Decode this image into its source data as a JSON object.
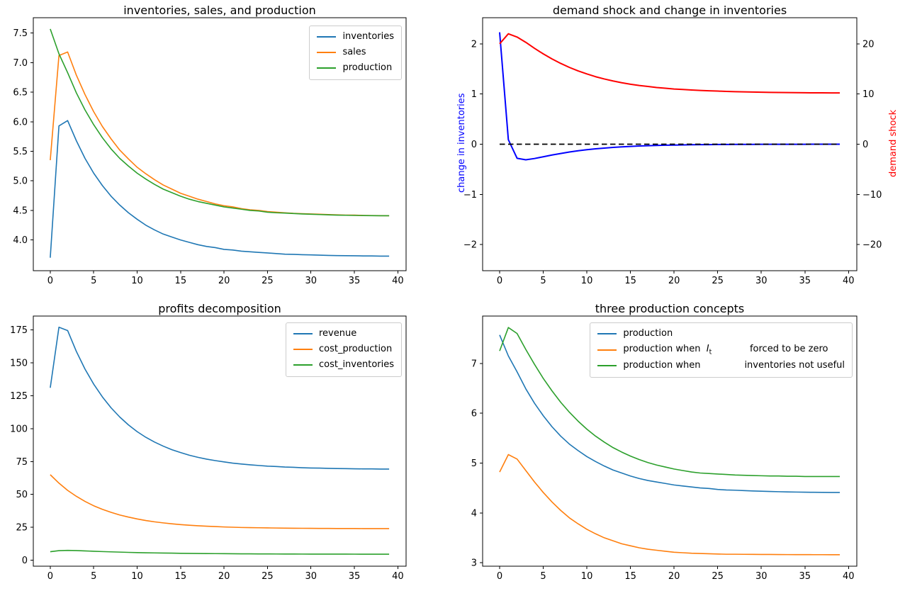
{
  "figure": {
    "background": "#ffffff"
  },
  "colors": {
    "mpl_blue": "#1f77b4",
    "mpl_orange": "#ff7f0e",
    "mpl_green": "#2ca02c",
    "pure_blue": "#0000ff",
    "pure_red": "#ff0000",
    "black": "#000000"
  },
  "x_values": [
    0,
    1,
    2,
    3,
    4,
    5,
    6,
    7,
    8,
    9,
    10,
    11,
    12,
    13,
    14,
    15,
    16,
    17,
    18,
    19,
    20,
    21,
    22,
    23,
    24,
    25,
    26,
    27,
    28,
    29,
    30,
    31,
    32,
    33,
    34,
    35,
    36,
    37,
    38,
    39
  ],
  "chart_data": [
    {
      "id": "inventories-sales-production",
      "type": "line",
      "title": "inventories, sales, and production",
      "xlim": [
        -1.95,
        40.95
      ],
      "ylim": [
        3.48,
        7.76
      ],
      "xticks": [
        0,
        5,
        10,
        15,
        20,
        25,
        30,
        35,
        40
      ],
      "xtick_labels": [
        "0",
        "5",
        "10",
        "15",
        "20",
        "25",
        "30",
        "35",
        "40"
      ],
      "yticks": [
        4.0,
        4.5,
        5.0,
        5.5,
        6.0,
        6.5,
        7.0,
        7.5
      ],
      "ytick_labels": [
        "4.0",
        "4.5",
        "5.0",
        "5.5",
        "6.0",
        "6.5",
        "7.0",
        "7.5"
      ],
      "legend_position": "upper-right",
      "series": [
        {
          "name": "inventories",
          "label": "inventories",
          "color": "#1f77b4",
          "width": 1.6,
          "values": [
            3.7,
            5.93,
            6.02,
            5.68,
            5.38,
            5.13,
            4.92,
            4.74,
            4.59,
            4.46,
            4.35,
            4.25,
            4.17,
            4.1,
            4.05,
            4.0,
            3.96,
            3.92,
            3.89,
            3.87,
            3.84,
            3.83,
            3.81,
            3.8,
            3.79,
            3.78,
            3.77,
            3.76,
            3.757,
            3.751,
            3.747,
            3.743,
            3.739,
            3.736,
            3.734,
            3.732,
            3.73,
            3.729,
            3.727,
            3.726
          ]
        },
        {
          "name": "sales",
          "label": "sales",
          "color": "#ff7f0e",
          "width": 1.6,
          "values": [
            5.35,
            7.12,
            7.18,
            6.79,
            6.46,
            6.17,
            5.92,
            5.71,
            5.52,
            5.37,
            5.23,
            5.12,
            5.02,
            4.93,
            4.86,
            4.79,
            4.74,
            4.69,
            4.65,
            4.61,
            4.58,
            4.56,
            4.53,
            4.51,
            4.5,
            4.48,
            4.47,
            4.46,
            4.45,
            4.445,
            4.44,
            4.435,
            4.43,
            4.425,
            4.42,
            4.42,
            4.415,
            4.413,
            4.411,
            4.41
          ]
        },
        {
          "name": "production",
          "label": "production",
          "color": "#2ca02c",
          "width": 1.6,
          "values": [
            7.57,
            7.15,
            6.83,
            6.49,
            6.2,
            5.95,
            5.73,
            5.54,
            5.38,
            5.25,
            5.13,
            5.03,
            4.94,
            4.86,
            4.8,
            4.74,
            4.69,
            4.65,
            4.62,
            4.59,
            4.56,
            4.54,
            4.52,
            4.5,
            4.49,
            4.47,
            4.46,
            4.455,
            4.447,
            4.44,
            4.435,
            4.43,
            4.425,
            4.42,
            4.418,
            4.415,
            4.413,
            4.411,
            4.41,
            4.41
          ]
        }
      ]
    },
    {
      "id": "demand-shock-change-in-inventories",
      "type": "line",
      "title": "demand shock and change in inventories",
      "ylabel_left": {
        "text": "change in inventories",
        "color": "#0000ff"
      },
      "ylabel_right": {
        "text": "demand shock",
        "color": "#ff0000"
      },
      "xlim": [
        -1.95,
        40.95
      ],
      "ylim": [
        -2.52,
        2.52
      ],
      "ylim_right": [
        -25.2,
        25.2
      ],
      "xticks": [
        0,
        5,
        10,
        15,
        20,
        25,
        30,
        35,
        40
      ],
      "xtick_labels": [
        "0",
        "5",
        "10",
        "15",
        "20",
        "25",
        "30",
        "35",
        "40"
      ],
      "yticks": [
        -2,
        -1,
        0,
        1,
        2
      ],
      "ytick_labels": [
        "−2",
        "−1",
        "0",
        "1",
        "2"
      ],
      "yticks_right": [
        -20,
        -10,
        0,
        10,
        20
      ],
      "ytick_labels_right": [
        "−20",
        "−10",
        "0",
        "10",
        "20"
      ],
      "series": [
        {
          "name": "change-in-inventories",
          "color": "#0000ff",
          "width": 2,
          "values": [
            2.23,
            0.09,
            -0.28,
            -0.31,
            -0.285,
            -0.25,
            -0.215,
            -0.185,
            -0.155,
            -0.13,
            -0.11,
            -0.092,
            -0.077,
            -0.064,
            -0.053,
            -0.044,
            -0.036,
            -0.03,
            -0.025,
            -0.02,
            -0.017,
            -0.014,
            -0.011,
            -0.009,
            -0.008,
            -0.006,
            -0.005,
            -0.004,
            -0.003,
            -0.003,
            -0.002,
            -0.002,
            -0.001,
            -0.001,
            -0.001,
            -0.001,
            0.0,
            0.0,
            0.0,
            0.0
          ]
        },
        {
          "name": "zero-line",
          "color": "#000000",
          "width": 1.8,
          "dash": "7.5 4.5",
          "values": [
            0,
            0,
            0,
            0,
            0,
            0,
            0,
            0,
            0,
            0,
            0,
            0,
            0,
            0,
            0,
            0,
            0,
            0,
            0,
            0,
            0,
            0,
            0,
            0,
            0,
            0,
            0,
            0,
            0,
            0,
            0,
            0,
            0,
            0,
            0,
            0,
            0,
            0,
            0,
            0
          ]
        },
        {
          "name": "demand-shock",
          "color": "#ff0000",
          "width": 2,
          "axis": "right",
          "values": [
            20.0,
            22.0,
            21.35,
            20.3,
            19.1,
            18.0,
            17.0,
            16.1,
            15.3,
            14.6,
            14.0,
            13.45,
            13.0,
            12.6,
            12.25,
            11.95,
            11.7,
            11.5,
            11.3,
            11.15,
            11.0,
            10.9,
            10.8,
            10.72,
            10.64,
            10.58,
            10.52,
            10.47,
            10.43,
            10.39,
            10.36,
            10.33,
            10.31,
            10.29,
            10.27,
            10.25,
            10.24,
            10.23,
            10.22,
            10.21
          ]
        }
      ]
    },
    {
      "id": "profits-decomposition",
      "type": "line",
      "title": "profits decomposition",
      "xlim": [
        -1.95,
        40.95
      ],
      "ylim": [
        -4.5,
        185.5
      ],
      "xticks": [
        0,
        5,
        10,
        15,
        20,
        25,
        30,
        35,
        40
      ],
      "xtick_labels": [
        "0",
        "5",
        "10",
        "15",
        "20",
        "25",
        "30",
        "35",
        "40"
      ],
      "yticks": [
        0,
        25,
        50,
        75,
        100,
        125,
        150,
        175
      ],
      "ytick_labels": [
        "0",
        "25",
        "50",
        "75",
        "100",
        "125",
        "150",
        "175"
      ],
      "legend_position": "upper-right",
      "series": [
        {
          "name": "revenue",
          "label": "revenue",
          "color": "#1f77b4",
          "width": 1.6,
          "values": [
            131,
            177,
            174.5,
            158.7,
            145.2,
            133.8,
            124.1,
            115.8,
            108.8,
            102.8,
            97.7,
            93.4,
            89.8,
            86.7,
            84.0,
            81.8,
            79.8,
            78.2,
            76.8,
            75.7,
            74.7,
            73.8,
            73.1,
            72.5,
            72.0,
            71.5,
            71.2,
            70.8,
            70.6,
            70.3,
            70.1,
            70.0,
            69.8,
            69.7,
            69.6,
            69.5,
            69.4,
            69.4,
            69.3,
            69.3
          ]
        },
        {
          "name": "cost-production",
          "label": "cost_production",
          "color": "#ff7f0e",
          "width": 1.6,
          "values": [
            65.0,
            58.6,
            53.1,
            48.6,
            44.7,
            41.4,
            38.7,
            36.4,
            34.4,
            32.8,
            31.4,
            30.2,
            29.2,
            28.4,
            27.7,
            27.1,
            26.6,
            26.2,
            25.9,
            25.6,
            25.3,
            25.1,
            24.9,
            24.8,
            24.7,
            24.6,
            24.5,
            24.4,
            24.35,
            24.3,
            24.25,
            24.2,
            24.17,
            24.14,
            24.12,
            24.1,
            24.08,
            24.07,
            24.06,
            24.05
          ]
        },
        {
          "name": "cost-inventories",
          "label": "cost_inventories",
          "color": "#2ca02c",
          "width": 1.6,
          "values": [
            6.5,
            7.3,
            7.5,
            7.35,
            7.1,
            6.85,
            6.6,
            6.4,
            6.2,
            6.0,
            5.85,
            5.7,
            5.6,
            5.5,
            5.4,
            5.3,
            5.25,
            5.15,
            5.1,
            5.05,
            5.0,
            4.95,
            4.9,
            4.87,
            4.84,
            4.81,
            4.78,
            4.76,
            4.74,
            4.72,
            4.7,
            4.69,
            4.68,
            4.67,
            4.66,
            4.65,
            4.64,
            4.63,
            4.62,
            4.61
          ]
        }
      ]
    },
    {
      "id": "three-production-concepts",
      "type": "line",
      "title": "three production concepts",
      "xlim": [
        -1.95,
        40.95
      ],
      "ylim": [
        2.93,
        7.95
      ],
      "xticks": [
        0,
        5,
        10,
        15,
        20,
        25,
        30,
        35,
        40
      ],
      "xtick_labels": [
        "0",
        "5",
        "10",
        "15",
        "20",
        "25",
        "30",
        "35",
        "40"
      ],
      "yticks": [
        3,
        4,
        5,
        6,
        7
      ],
      "ytick_labels": [
        "3",
        "4",
        "5",
        "6",
        "7"
      ],
      "legend_position": "upper-right",
      "series": [
        {
          "name": "production",
          "label": "production",
          "color": "#1f77b4",
          "width": 1.6,
          "values": [
            7.57,
            7.15,
            6.83,
            6.49,
            6.2,
            5.95,
            5.73,
            5.54,
            5.38,
            5.25,
            5.13,
            5.03,
            4.94,
            4.86,
            4.8,
            4.74,
            4.69,
            4.65,
            4.62,
            4.59,
            4.56,
            4.54,
            4.52,
            4.5,
            4.49,
            4.47,
            4.46,
            4.455,
            4.447,
            4.44,
            4.435,
            4.43,
            4.425,
            4.42,
            4.418,
            4.415,
            4.413,
            4.411,
            4.41,
            4.41
          ]
        },
        {
          "name": "production-when-inventories-forced-zero",
          "label": "production when  $I_t$             forced to be zero",
          "color": "#ff7f0e",
          "width": 1.6,
          "values": [
            4.82,
            5.17,
            5.08,
            4.85,
            4.62,
            4.41,
            4.22,
            4.05,
            3.9,
            3.78,
            3.67,
            3.58,
            3.5,
            3.44,
            3.38,
            3.34,
            3.3,
            3.27,
            3.25,
            3.23,
            3.21,
            3.2,
            3.19,
            3.185,
            3.18,
            3.175,
            3.17,
            3.17,
            3.168,
            3.167,
            3.166,
            3.165,
            3.164,
            3.163,
            3.162,
            3.162,
            3.161,
            3.161,
            3.16,
            3.16
          ]
        },
        {
          "name": "production-when-inventories-not-useful",
          "label": "production when               inventories not useful",
          "color": "#2ca02c",
          "width": 1.6,
          "values": [
            7.25,
            7.72,
            7.6,
            7.28,
            6.98,
            6.7,
            6.45,
            6.22,
            6.02,
            5.84,
            5.68,
            5.54,
            5.42,
            5.31,
            5.22,
            5.14,
            5.07,
            5.01,
            4.96,
            4.92,
            4.88,
            4.85,
            4.82,
            4.8,
            4.79,
            4.78,
            4.77,
            4.76,
            4.755,
            4.75,
            4.745,
            4.74,
            4.74,
            4.735,
            4.735,
            4.73,
            4.73,
            4.73,
            4.73,
            4.73
          ]
        }
      ]
    }
  ]
}
